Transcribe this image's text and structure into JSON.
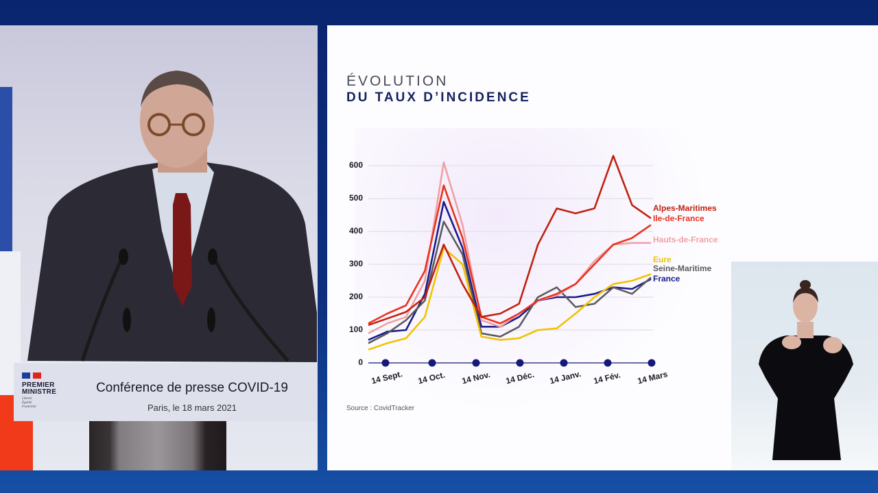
{
  "broadcast": {
    "lectern": {
      "logo_line1": "PREMIER",
      "logo_line2": "MINISTRE",
      "motto": [
        "Liberté",
        "Égalité",
        "Fraternité"
      ],
      "title": "Conférence de presse COVID-19",
      "subtitle": "Paris, le 18 mars 2021"
    },
    "speaker_panel": "Speaker at lectern",
    "sign_language_panel": "Sign language interpreter"
  },
  "slide": {
    "title_line1": "ÉVOLUTION",
    "title_line2": "DU TAUX D’INCIDENCE",
    "source": "Source : CovidTracker"
  },
  "colors": {
    "frame_blue": "#0d2f7e",
    "title_navy": "#15205e",
    "alpes_maritimes": "#c0200e",
    "ile_de_france": "#e8321e",
    "hauts_de_france": "#f0a0a4",
    "eure": "#f2c200",
    "seine_maritime": "#5a5a5e",
    "france": "#1a1a8c",
    "axis_dot": "#151a78"
  },
  "chart_data": {
    "type": "line",
    "title": "Évolution du taux d’incidence",
    "xlabel": "",
    "ylabel": "",
    "ylim": [
      0,
      650
    ],
    "yticks": [
      0,
      100,
      200,
      300,
      400,
      500,
      600
    ],
    "grid": true,
    "legend_position": "right-inline",
    "categories": [
      "14 Sept.",
      "14 Oct.",
      "14 Nov.",
      "14 Déc.",
      "14 Janv.",
      "14 Fév.",
      "14 Mars"
    ],
    "x_half_month_steps": [
      "1 Sept",
      "14 Sept",
      "1 Oct",
      "14 Oct",
      "22 Oct",
      "1 Nov",
      "14 Nov",
      "1 Déc",
      "14 Déc",
      "1 Janv",
      "14 Janv",
      "1 Fév",
      "14 Fév",
      "22 Fév",
      "1 Mars",
      "14 Mars"
    ],
    "series": [
      {
        "name": "Alpes-Maritimes",
        "color": "#c0200e",
        "values": [
          115,
          135,
          155,
          200,
          360,
          240,
          140,
          150,
          180,
          360,
          470,
          455,
          470,
          630,
          480,
          440
        ]
      },
      {
        "name": "Ile-de-France",
        "color": "#e8321e",
        "values": [
          120,
          150,
          175,
          280,
          540,
          380,
          140,
          120,
          150,
          190,
          210,
          240,
          300,
          360,
          380,
          420
        ]
      },
      {
        "name": "Hauts-de-France",
        "color": "#f0a0a4",
        "values": [
          90,
          120,
          140,
          250,
          610,
          420,
          130,
          110,
          150,
          190,
          205,
          240,
          310,
          360,
          365,
          365
        ]
      },
      {
        "name": "Eure",
        "color": "#f2c200",
        "values": [
          40,
          60,
          75,
          140,
          350,
          300,
          80,
          70,
          75,
          100,
          105,
          150,
          200,
          240,
          250,
          270
        ]
      },
      {
        "name": "Seine-Maritime",
        "color": "#5a5a5e",
        "values": [
          60,
          90,
          130,
          190,
          430,
          330,
          90,
          80,
          110,
          200,
          230,
          170,
          180,
          230,
          210,
          260
        ]
      },
      {
        "name": "France",
        "color": "#1a1a8c",
        "values": [
          70,
          95,
          100,
          210,
          490,
          350,
          110,
          110,
          140,
          190,
          200,
          200,
          210,
          230,
          225,
          255
        ]
      }
    ]
  }
}
